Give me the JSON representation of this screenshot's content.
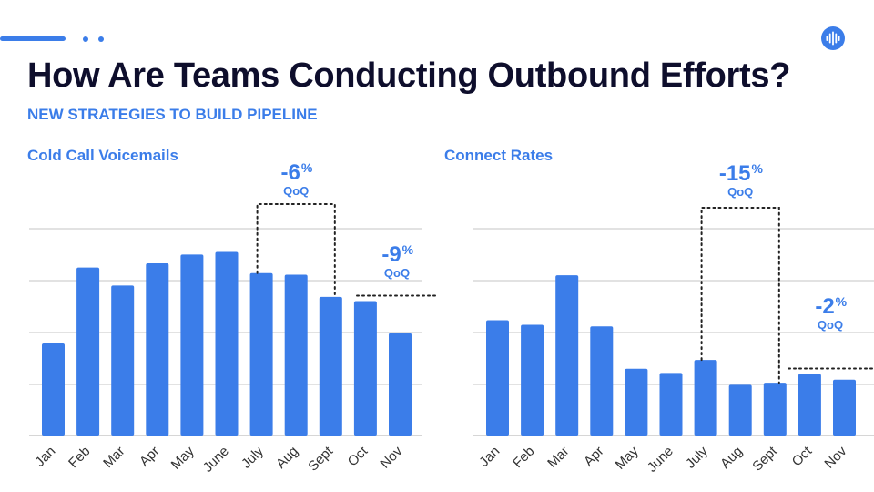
{
  "header": {
    "title": "How Are Teams Conducting Outbound Efforts?",
    "subtitle": "NEW STRATEGIES TO BUILD PIPELINE",
    "logo_icon": "soundwave-icon",
    "accent_color": "#3b7de9"
  },
  "chart_data": [
    {
      "type": "bar",
      "title": "Cold Call Voicemails",
      "categories": [
        "Jan",
        "Feb",
        "Mar",
        "Apr",
        "May",
        "June",
        "July",
        "Aug",
        "Sept",
        "Oct",
        "Nov"
      ],
      "values": [
        1.78,
        3.25,
        2.9,
        3.33,
        3.5,
        3.55,
        3.14,
        3.11,
        2.68,
        2.6,
        1.98
      ],
      "ylim": [
        0,
        4
      ],
      "grid": true,
      "bar_color": "#3b7de9",
      "annotations": [
        {
          "label": "-6",
          "unit": "%",
          "note": "QoQ",
          "type": "bracket",
          "from": "July",
          "to": "Sept"
        },
        {
          "label": "-9",
          "unit": "%",
          "note": "QoQ",
          "type": "trend",
          "from": "Oct",
          "to": "Nov"
        }
      ]
    },
    {
      "type": "bar",
      "title": "Connect Rates",
      "categories": [
        "Jan",
        "Feb",
        "Mar",
        "Apr",
        "May",
        "June",
        "July",
        "Aug",
        "Sept",
        "Oct",
        "Nov"
      ],
      "values": [
        2.23,
        2.14,
        3.1,
        2.11,
        1.29,
        1.21,
        1.46,
        0.98,
        1.02,
        1.19,
        1.08
      ],
      "ylim": [
        0,
        4
      ],
      "grid": true,
      "bar_color": "#3b7de9",
      "annotations": [
        {
          "label": "-15",
          "unit": "%",
          "note": "QoQ",
          "type": "bracket",
          "from": "July",
          "to": "Sept"
        },
        {
          "label": "-2",
          "unit": "%",
          "note": "QoQ",
          "type": "trend",
          "from": "Oct",
          "to": "Nov"
        }
      ]
    }
  ]
}
